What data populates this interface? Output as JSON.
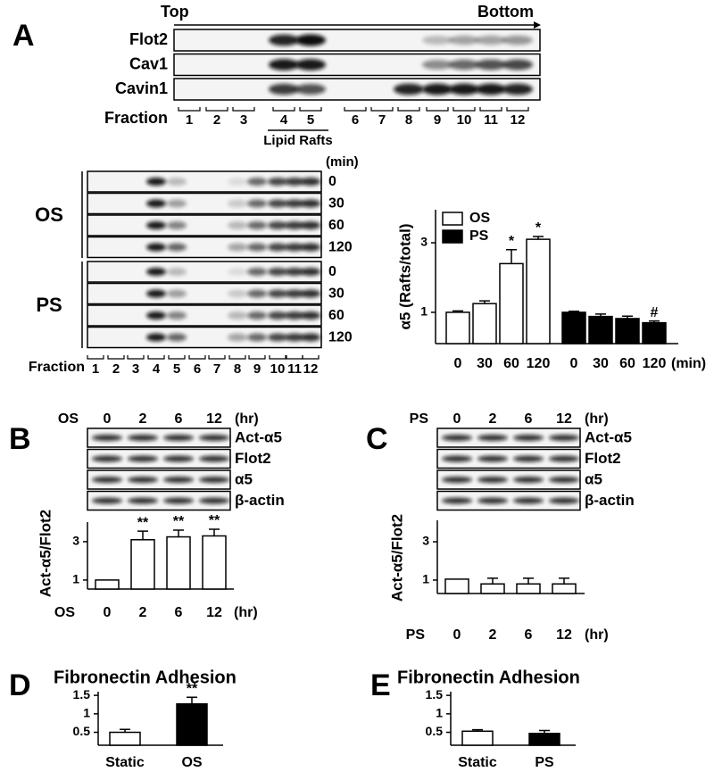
{
  "panel_labels": [
    "A",
    "B",
    "C",
    "D",
    "E"
  ],
  "blots": {
    "top": {
      "start": "Top",
      "end": "Bottom",
      "rows": [
        "Flot2",
        "Cav1",
        "Cavin1"
      ],
      "fraction_label": "Fraction",
      "fractions": [
        "1",
        "2",
        "3",
        "4",
        "5",
        "6",
        "7",
        "8",
        "9",
        "10",
        "11",
        "12"
      ],
      "raft_label": "Lipid Rafts"
    },
    "time_course": {
      "unit": "(min)",
      "groups": [
        {
          "name": "OS",
          "times": [
            "0",
            "30",
            "60",
            "120"
          ]
        },
        {
          "name": "PS",
          "times": [
            "0",
            "30",
            "60",
            "120"
          ]
        }
      ],
      "fraction_label": "Fraction",
      "fractions": [
        "1",
        "2",
        "3",
        "4",
        "5",
        "6",
        "7",
        "8",
        "9",
        "10",
        "11",
        "12"
      ]
    },
    "B": {
      "treatment": "OS",
      "times": [
        "0",
        "2",
        "6",
        "12"
      ],
      "unit": "(hr)",
      "rows": [
        "Act-α5",
        "Flot2",
        "α5",
        "β-actin"
      ]
    },
    "C": {
      "treatment": "PS",
      "times": [
        "0",
        "2",
        "6",
        "12"
      ],
      "unit": "(hr)",
      "rows": [
        "Act-α5",
        "Flot2",
        "α5",
        "β-actin"
      ]
    }
  },
  "chart_data": [
    {
      "type": "bar",
      "y_label": "α5 (Rafts/total)",
      "x_unit": "(min)",
      "categories": [
        "0",
        "30",
        "60",
        "120",
        "0",
        "30",
        "60",
        "120"
      ],
      "series": [
        {
          "name": "OS",
          "color": "#ffffff",
          "values": [
            1,
            1.25,
            2.4,
            3.1,
            null,
            null,
            null,
            null
          ],
          "errors": [
            0.04,
            0.08,
            0.4,
            0.08,
            null,
            null,
            null,
            null
          ],
          "significance": [
            null,
            null,
            "*",
            "*",
            null,
            null,
            null,
            null
          ]
        },
        {
          "name": "PS",
          "color": "#000000",
          "values": [
            null,
            null,
            null,
            null,
            1,
            0.88,
            0.82,
            0.7
          ],
          "errors": [
            null,
            null,
            null,
            null,
            0.03,
            0.07,
            0.07,
            0.05
          ],
          "significance": [
            null,
            null,
            null,
            null,
            null,
            null,
            null,
            "#"
          ]
        }
      ],
      "ylim": [
        0.1,
        3.95
      ],
      "yticks": [
        1,
        3
      ],
      "legend": "upper left"
    },
    {
      "type": "bar",
      "y_label": "Act-α5/Flot2",
      "x_prefix": "OS",
      "x_unit": "(hr)",
      "categories": [
        "0",
        "2",
        "6",
        "12"
      ],
      "series": [
        {
          "color": "#ffffff",
          "values": [
            1,
            3.1,
            3.25,
            3.3
          ],
          "errors": [
            null,
            0.45,
            0.35,
            0.35
          ],
          "significance": [
            null,
            "**",
            "**",
            "**"
          ]
        }
      ],
      "ylim": [
        0.53,
        4.02
      ],
      "yticks": [
        1,
        3
      ]
    },
    {
      "type": "bar",
      "y_label": "Act-α5/Flot2",
      "x_prefix": "PS",
      "x_unit": "(hr)",
      "categories": [
        "0",
        "2",
        "6",
        "12"
      ],
      "series": [
        {
          "color": "#ffffff",
          "values": [
            1.05,
            0.8,
            0.8,
            0.8
          ],
          "errors": [
            null,
            0.3,
            0.3,
            0.3
          ]
        }
      ],
      "ylim": [
        0.3,
        4.12
      ],
      "yticks": [
        1,
        3
      ]
    },
    {
      "type": "bar",
      "title": "Fibronectin Adhesion",
      "categories": [
        "Static",
        "OS"
      ],
      "series": [
        {
          "colors": [
            "#ffffff",
            "#000000"
          ],
          "values": [
            0.5,
            1.27
          ],
          "errors": [
            0.08,
            0.18
          ],
          "significance": [
            null,
            "**"
          ]
        }
      ],
      "ylim": [
        0.15,
        1.6
      ],
      "yticks": [
        0.5,
        1,
        1.5
      ]
    },
    {
      "type": "bar",
      "title": "Fibronectin Adhesion",
      "categories": [
        "Static",
        "PS"
      ],
      "series": [
        {
          "colors": [
            "#ffffff",
            "#000000"
          ],
          "values": [
            0.53,
            0.47
          ],
          "errors": [
            0.04,
            0.08
          ]
        }
      ],
      "ylim": [
        0.15,
        1.6
      ],
      "yticks": [
        0.5,
        1,
        1.5
      ]
    }
  ]
}
